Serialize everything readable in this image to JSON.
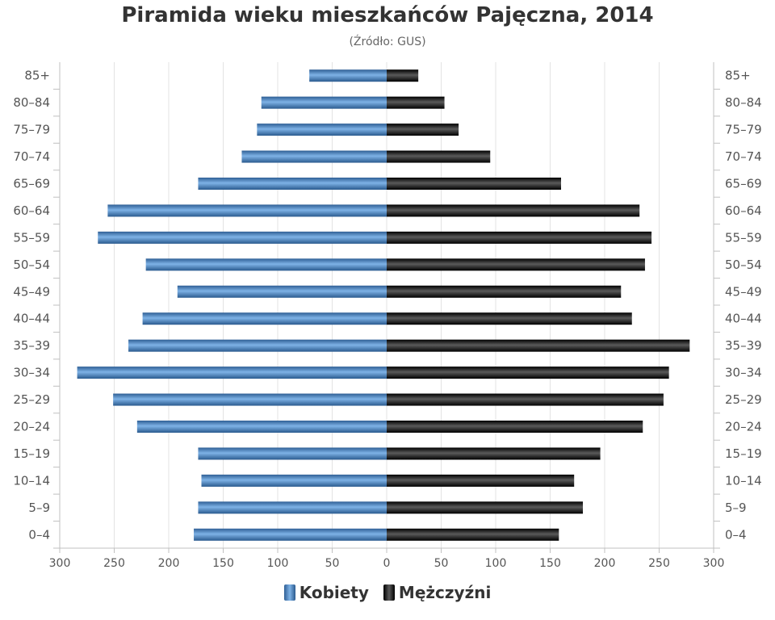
{
  "header": {
    "title": "Piramida wieku mieszkańców Pajęczna, 2014",
    "subtitle": "(Źródło: GUS)"
  },
  "chart_data": {
    "type": "bar",
    "orientation": "horizontal-population-pyramid",
    "title": "Piramida wieku mieszkańców Pajęczna, 2014",
    "subtitle": "(Źródło: GUS)",
    "categories": [
      "85+",
      "80–84",
      "75–79",
      "70–74",
      "65–69",
      "60–64",
      "55–59",
      "50–54",
      "45–49",
      "40–44",
      "35–39",
      "30–34",
      "25–29",
      "20–24",
      "15–19",
      "10–14",
      "5–9",
      "0–4"
    ],
    "series": [
      {
        "name": "Kobiety",
        "side": "left",
        "color": "#4a86c6",
        "values": [
          71,
          115,
          119,
          133,
          173,
          256,
          265,
          221,
          192,
          224,
          237,
          284,
          251,
          229,
          173,
          170,
          173,
          177
        ]
      },
      {
        "name": "Mężczyźni",
        "side": "right",
        "color": "#1a1a1a",
        "values": [
          29,
          53,
          66,
          95,
          160,
          232,
          243,
          237,
          215,
          225,
          278,
          259,
          254,
          235,
          196,
          172,
          180,
          158
        ]
      }
    ],
    "xlim": [
      -300,
      300
    ],
    "xticks": [
      "300",
      "250",
      "200",
      "150",
      "100",
      "50",
      "0",
      "50",
      "100",
      "150",
      "200",
      "250",
      "300"
    ],
    "grid": true,
    "legend_position": "bottom-center"
  }
}
